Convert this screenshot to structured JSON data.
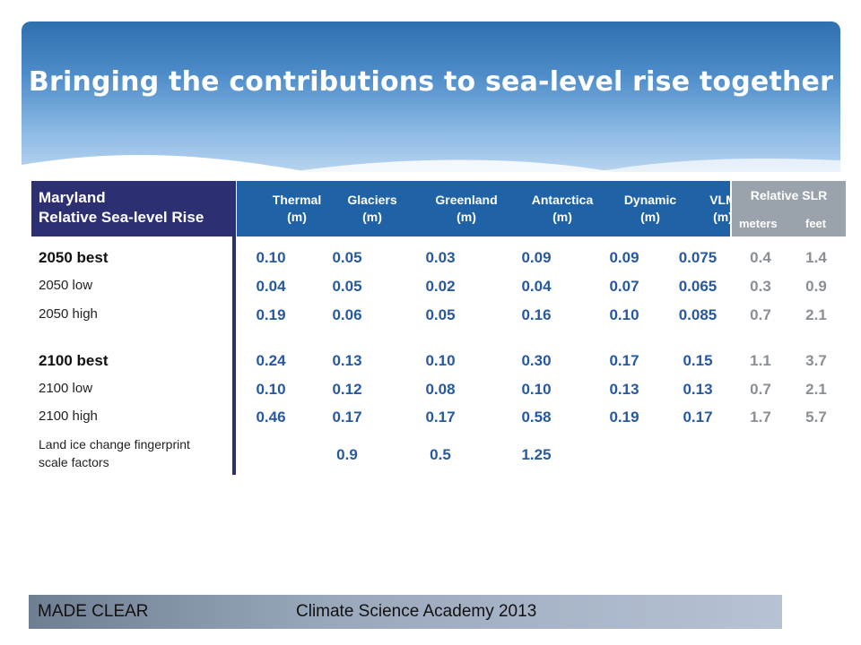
{
  "slide": {
    "title": "Bringing the contributions to sea-level rise together"
  },
  "table": {
    "header_left_line1": "Maryland",
    "header_left_line2": "Relative Sea-level Rise",
    "columns": [
      {
        "line1": "Thermal",
        "line2": "(m)"
      },
      {
        "line1": "Glaciers",
        "line2": "(m)"
      },
      {
        "line1": "Greenland",
        "line2": "(m)"
      },
      {
        "line1": "Antarctica",
        "line2": "(m)"
      },
      {
        "line1": "Dynamic",
        "line2": "(m)"
      },
      {
        "line1": "VLM",
        "line2": "(m)"
      }
    ],
    "relative_slr": {
      "label": "Relative SLR",
      "meters": "meters",
      "feet": "feet"
    },
    "rows": [
      {
        "label": "2050 best",
        "values": [
          "0.10",
          "0.05",
          "0.03",
          "0.09",
          "0.09",
          "0.075",
          "0.4",
          "1.4"
        ]
      },
      {
        "label": "2050 low",
        "values": [
          "0.04",
          "0.05",
          "0.02",
          "0.04",
          "0.07",
          "0.065",
          "0.3",
          "0.9"
        ]
      },
      {
        "label": "2050 high",
        "values": [
          "0.19",
          "0.06",
          "0.05",
          "0.16",
          "0.10",
          "0.085",
          "0.7",
          "2.1"
        ]
      },
      {
        "label": "2100 best",
        "values": [
          "0.24",
          "0.13",
          "0.10",
          "0.30",
          "0.17",
          "0.15",
          "1.1",
          "3.7"
        ]
      },
      {
        "label": "2100 low",
        "values": [
          "0.10",
          "0.12",
          "0.08",
          "0.10",
          "0.13",
          "0.13",
          "0.7",
          "2.1"
        ]
      },
      {
        "label": "2100 high",
        "values": [
          "0.46",
          "0.17",
          "0.17",
          "0.58",
          "0.19",
          "0.17",
          "1.7",
          "5.7"
        ]
      }
    ],
    "fingerprint": {
      "label_line1": "Land ice change fingerprint",
      "label_line2": "scale factors",
      "values": [
        "0.9",
        "0.5",
        "1.25"
      ]
    }
  },
  "footer": {
    "left": "MADE CLEAR",
    "center": "Climate Science Academy 2013"
  }
}
